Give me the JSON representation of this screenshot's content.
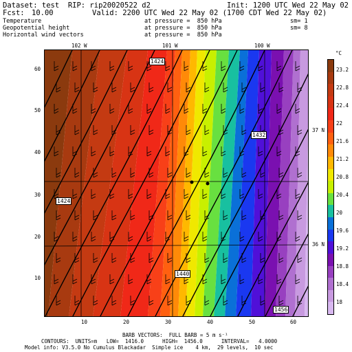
{
  "header": {
    "dataset_line": "Dataset: test  RIP: rip20020522 d2",
    "init_line": "Init: 1200 UTC Wed 22 May 02",
    "fcst_label": "Fcst:",
    "fcst_value": "10.00",
    "valid_line": "Valid: 2200 UTC Wed 22 May 02 (1700 CDT Wed 22 May 02)",
    "fields": [
      {
        "name": "Temperature",
        "pressure": "at pressure =  850 hPa",
        "sm": "sm= 1"
      },
      {
        "name": "Geopotential height",
        "pressure": "at pressure =  850 hPa",
        "sm": "sm= 8"
      },
      {
        "name": "Horizontal wind vectors",
        "pressure": "at pressure =  850 hPa",
        "sm": ""
      }
    ]
  },
  "map": {
    "lon_labels": [
      "102 W",
      "101 W",
      "100 W"
    ],
    "lat_labels": [
      "37 N",
      "36 N"
    ],
    "x_ticks": [
      "10",
      "20",
      "30",
      "40",
      "50",
      "60"
    ],
    "y_ticks": [
      "10",
      "20",
      "30",
      "40",
      "50",
      "60"
    ],
    "height_contour_labels": [
      "1424",
      "1432",
      "1424",
      "1440",
      "1456"
    ],
    "height_contour_values": [
      1424,
      1432,
      1424,
      1440,
      1456
    ]
  },
  "colorbar": {
    "unit": "°C",
    "labels": [
      "23.2",
      "22.8",
      "22.4",
      "22",
      "21.6",
      "21.2",
      "20.8",
      "20.4",
      "20",
      "19.6",
      "19.2",
      "18.8",
      "18.4",
      "18"
    ],
    "colors": [
      "#8b3a0e",
      "#a83a10",
      "#c43a12",
      "#d83414",
      "#f02818",
      "#f84018",
      "#ff6010",
      "#ff8a08",
      "#ffb800",
      "#f0e800",
      "#c8f000",
      "#68e040",
      "#18c0a0",
      "#0a70d8",
      "#1a38f0",
      "#5010d8",
      "#7a10b0",
      "#9840c0",
      "#b070d0",
      "#c89ae0",
      "#d8b8f0"
    ]
  },
  "footer": {
    "barb_line": "BARB VECTORS:  FULL BARB = 5 m s⁻¹",
    "contours_line": "CONTOURS:  UNITS=m   LOW=  1416.0      HIGH=  1456.0      INTERVAL=   4.0000",
    "model_info": "Model info: V3.5.0 No Cumulus Blackadar  Simple ice    4 km,  29 levels,  10 sec"
  }
}
